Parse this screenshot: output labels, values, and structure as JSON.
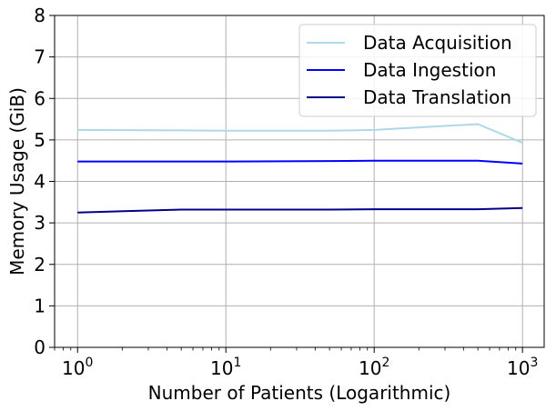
{
  "chart_data": {
    "type": "line",
    "title": "",
    "xlabel": "Number of Patients (Logarithmic)",
    "ylabel": "Memory Usage (GiB)",
    "x_scale": "log",
    "xlim": [
      0.7,
      1400
    ],
    "ylim": [
      0,
      8
    ],
    "grid": true,
    "legend_position": "top-right",
    "x_ticks": [
      {
        "value": 1,
        "base": "10",
        "exp": "0"
      },
      {
        "value": 10,
        "base": "10",
        "exp": "1"
      },
      {
        "value": 100,
        "base": "10",
        "exp": "2"
      },
      {
        "value": 1000,
        "base": "10",
        "exp": "3"
      }
    ],
    "y_ticks": [
      {
        "value": 0,
        "label": "0"
      },
      {
        "value": 1,
        "label": "1"
      },
      {
        "value": 2,
        "label": "2"
      },
      {
        "value": 3,
        "label": "3"
      },
      {
        "value": 4,
        "label": "4"
      },
      {
        "value": 5,
        "label": "5"
      },
      {
        "value": 6,
        "label": "6"
      },
      {
        "value": 7,
        "label": "7"
      },
      {
        "value": 8,
        "label": "8"
      }
    ],
    "series": [
      {
        "name": "Data Acquisition",
        "color": "#add8e6",
        "x": [
          1,
          5,
          10,
          50,
          100,
          500,
          1000
        ],
        "y": [
          5.24,
          5.23,
          5.22,
          5.22,
          5.24,
          5.38,
          4.93
        ]
      },
      {
        "name": "Data Ingestion",
        "color": "#0000ff",
        "x": [
          1,
          5,
          10,
          50,
          100,
          500,
          1000
        ],
        "y": [
          4.48,
          4.48,
          4.48,
          4.49,
          4.5,
          4.5,
          4.43
        ]
      },
      {
        "name": "Data Translation",
        "color": "#00008b",
        "x": [
          1,
          5,
          10,
          50,
          100,
          500,
          1000
        ],
        "y": [
          3.25,
          3.32,
          3.32,
          3.32,
          3.33,
          3.33,
          3.36
        ]
      }
    ]
  }
}
